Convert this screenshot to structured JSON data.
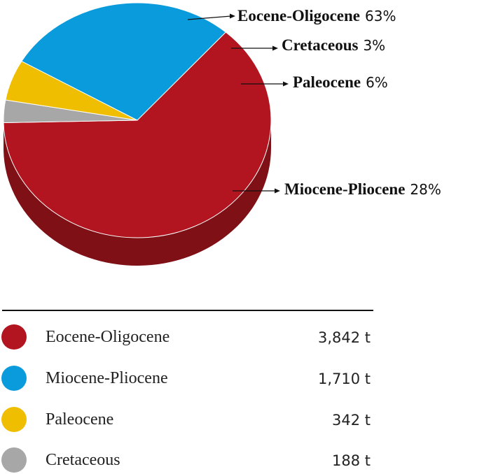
{
  "chart_data": {
    "type": "pie",
    "three_d": true,
    "legend_placement": "bottom",
    "title": "",
    "slices": [
      {
        "label": "Eocene-Oligocene",
        "percent": 63,
        "percent_text": "63%",
        "value": 3842,
        "value_text": "3,842 t",
        "color": "#B31520",
        "side_color": "#7E1016"
      },
      {
        "label": "Cretaceous",
        "percent": 3,
        "percent_text": "3%",
        "value": 188,
        "value_text": "188 t",
        "color": "#A7A7A7",
        "side_color": "#7A7A7A"
      },
      {
        "label": "Paleocene",
        "percent": 6,
        "percent_text": "6%",
        "value": 342,
        "value_text": "342 t",
        "color": "#F0BE00",
        "side_color": "#B08B00"
      },
      {
        "label": "Miocene-Pliocene",
        "percent": 28,
        "percent_text": "28%",
        "value": 1710,
        "value_text": "1,710 t",
        "color": "#0A9BDC",
        "side_color": "#0A6E9C"
      }
    ],
    "legend": [
      {
        "label": "Eocene-Oligocene",
        "value_text": "3,842 t",
        "color": "#B31520"
      },
      {
        "label": "Miocene-Pliocene",
        "value_text": "1,710 t",
        "color": "#0A9BDC"
      },
      {
        "label": "Paleocene",
        "value_text": "342 t",
        "color": "#F0BE00"
      },
      {
        "label": "Cretaceous",
        "value_text": "188 t",
        "color": "#A7A7A7"
      }
    ]
  }
}
